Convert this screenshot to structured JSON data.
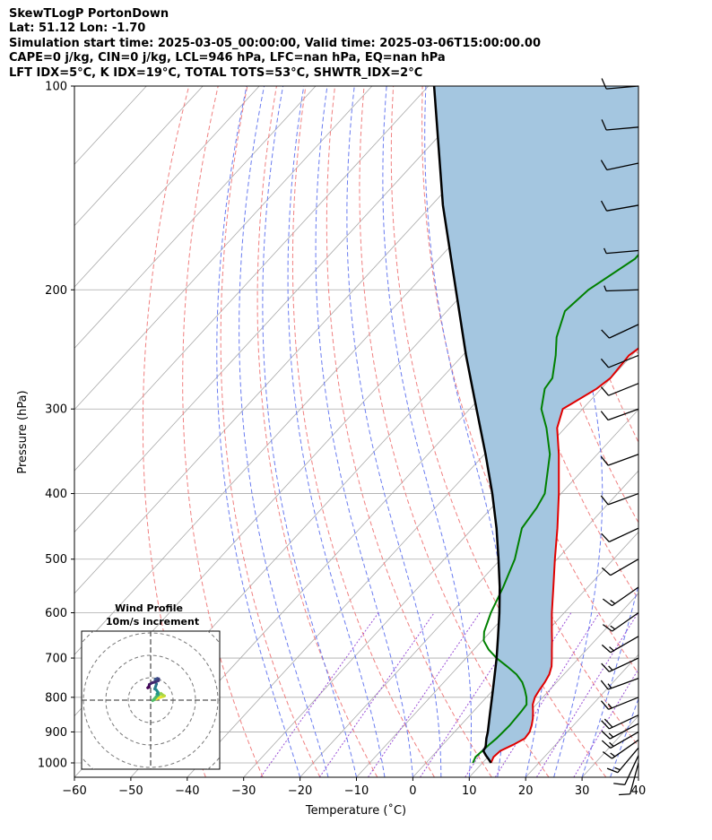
{
  "header": {
    "line1": "SkewTLogP PortonDown",
    "line2": "Lat: 51.12   Lon: -1.70",
    "line3": "Simulation start time: 2025-03-05_00:00:00, Valid time: 2025-03-06T15:00:00.00",
    "line4": "CAPE=0 j/kg, CIN=0 j/kg, LCL=946 hPa, LFC=nan hPa, EQ=nan hPa",
    "line5": "LFT IDX=5°C, K IDX=19°C, TOTAL TOTS=53°C, SHWTR_IDX=2°C"
  },
  "colors": {
    "temperature": "#e00000",
    "dewpoint": "#008000",
    "parcel": "#000000",
    "cape_fill": "#a4c6e0",
    "dry_adiabat": "#f08080",
    "moist_adiabat": "#6a7cf0",
    "mixing_ratio": "#9a4fd6",
    "isotherm": "#aaaaaa"
  },
  "chart_data": {
    "type": "skew-t log-p",
    "xlabel": "Temperature ($^\\circ$C)",
    "xlabel_text": "Temperature (˚C)",
    "ylabel": "Pressure (hPa)",
    "xlim": [
      -60,
      40
    ],
    "ylim": [
      1050,
      100
    ],
    "x_ticks": [
      -60,
      -50,
      -40,
      -30,
      -20,
      -10,
      0,
      10,
      20,
      30,
      40
    ],
    "x_tick_labels": [
      "−60",
      "−50",
      "−40",
      "−30",
      "−20",
      "−10",
      "0",
      "10",
      "20",
      "30",
      "40"
    ],
    "y_ticks": [
      1000,
      900,
      800,
      700,
      600,
      500,
      400,
      300,
      200,
      100
    ],
    "temperature": {
      "p": [
        1000,
        980,
        960,
        940,
        920,
        900,
        880,
        860,
        840,
        820,
        800,
        780,
        760,
        740,
        720,
        700,
        680,
        660,
        640,
        600,
        550,
        500,
        450,
        400,
        350,
        320,
        300,
        280,
        270,
        250,
        235,
        215,
        200,
        180,
        160,
        150,
        140,
        130,
        120,
        110,
        100
      ],
      "t": [
        11.5,
        11.0,
        11.2,
        12.5,
        13.5,
        13.3,
        12.6,
        11.7,
        10.6,
        9.4,
        8.6,
        8.2,
        7.9,
        7.4,
        6.5,
        5.2,
        3.8,
        2.4,
        0.9,
        -2.2,
        -6.1,
        -10.4,
        -15.0,
        -20.4,
        -26.8,
        -31.4,
        -33.5,
        -30.8,
        -30.1,
        -30.5,
        -29.1,
        -26.4,
        -25.6,
        -25.8,
        -26.2,
        -26.4,
        -24.6,
        -23.7,
        -23.1,
        -23.4,
        -22.9
      ]
    },
    "dewpoint": {
      "p": [
        1000,
        980,
        960,
        940,
        920,
        900,
        880,
        860,
        840,
        820,
        800,
        780,
        760,
        740,
        720,
        700,
        680,
        660,
        640,
        600,
        550,
        500,
        450,
        420,
        400,
        350,
        320,
        300,
        280,
        270,
        250,
        235,
        215,
        200,
        180,
        160,
        150,
        140,
        130,
        120,
        110,
        100
      ],
      "t": [
        8.3,
        7.8,
        8.0,
        8.2,
        8.5,
        8.6,
        8.7,
        8.6,
        8.5,
        8.3,
        7.1,
        5.6,
        3.9,
        1.6,
        -1.4,
        -4.6,
        -7.4,
        -9.7,
        -11.1,
        -13.0,
        -15.0,
        -17.5,
        -21.3,
        -22.0,
        -22.9,
        -28.4,
        -33.3,
        -37.3,
        -40.0,
        -40.4,
        -43.5,
        -46.3,
        -49.1,
        -48.4,
        -45.2,
        -45.5,
        -47.0,
        -50.6,
        -49.1,
        -48.7,
        -48.0,
        -47.8
      ]
    },
    "parcel": {
      "p": [
        1000,
        990,
        975,
        960,
        946,
        920,
        900,
        850,
        800,
        750,
        700,
        650,
        600,
        550,
        500,
        450,
        400,
        350,
        300,
        250,
        200,
        150,
        100
      ],
      "t": [
        11.5,
        10.7,
        9.4,
        8.2,
        7.9,
        6.7,
        5.9,
        3.5,
        1.0,
        -1.7,
        -4.6,
        -7.9,
        -11.5,
        -15.6,
        -20.4,
        -25.8,
        -32.2,
        -39.8,
        -48.8,
        -59.4,
        -71.9,
        -88.0,
        -109.0
      ]
    },
    "wind_barbs": [
      {
        "p": 1000,
        "speed_kt": 12,
        "dir_deg": 195
      },
      {
        "p": 975,
        "speed_kt": 14,
        "dir_deg": 205
      },
      {
        "p": 950,
        "speed_kt": 16,
        "dir_deg": 220
      },
      {
        "p": 925,
        "speed_kt": 17,
        "dir_deg": 235
      },
      {
        "p": 900,
        "speed_kt": 18,
        "dir_deg": 240
      },
      {
        "p": 875,
        "speed_kt": 19,
        "dir_deg": 242
      },
      {
        "p": 850,
        "speed_kt": 20,
        "dir_deg": 245
      },
      {
        "p": 800,
        "speed_kt": 19,
        "dir_deg": 248
      },
      {
        "p": 750,
        "speed_kt": 18,
        "dir_deg": 250
      },
      {
        "p": 700,
        "speed_kt": 17,
        "dir_deg": 245
      },
      {
        "p": 650,
        "speed_kt": 16,
        "dir_deg": 240
      },
      {
        "p": 600,
        "speed_kt": 17,
        "dir_deg": 235
      },
      {
        "p": 550,
        "speed_kt": 16,
        "dir_deg": 235
      },
      {
        "p": 500,
        "speed_kt": 14,
        "dir_deg": 240
      },
      {
        "p": 450,
        "speed_kt": 12,
        "dir_deg": 245
      },
      {
        "p": 400,
        "speed_kt": 11,
        "dir_deg": 250
      },
      {
        "p": 350,
        "speed_kt": 12,
        "dir_deg": 250
      },
      {
        "p": 300,
        "speed_kt": 12,
        "dir_deg": 250
      },
      {
        "p": 275,
        "speed_kt": 11,
        "dir_deg": 248
      },
      {
        "p": 250,
        "speed_kt": 12,
        "dir_deg": 248
      },
      {
        "p": 225,
        "speed_kt": 11,
        "dir_deg": 245
      },
      {
        "p": 200,
        "speed_kt": 9,
        "dir_deg": 268
      },
      {
        "p": 175,
        "speed_kt": 9,
        "dir_deg": 265
      },
      {
        "p": 150,
        "speed_kt": 12,
        "dir_deg": 260
      },
      {
        "p": 130,
        "speed_kt": 12,
        "dir_deg": 258
      },
      {
        "p": 115,
        "speed_kt": 11,
        "dir_deg": 265
      },
      {
        "p": 100,
        "speed_kt": 10,
        "dir_deg": 265
      }
    ],
    "hodograph": {
      "title": "Wind Profile",
      "subtitle": "10m/s increment",
      "ring_increment_ms": 10,
      "points": [
        {
          "u": 2.5,
          "v": 0.5
        },
        {
          "u": 4.0,
          "v": 1.2
        },
        {
          "u": 5.5,
          "v": 1.6
        },
        {
          "u": 6.2,
          "v": 1.9
        },
        {
          "u": 5.2,
          "v": 2.5
        },
        {
          "u": 4.6,
          "v": 3.0
        },
        {
          "u": 3.5,
          "v": 2.2
        },
        {
          "u": 2.6,
          "v": 1.5
        },
        {
          "u": 1.6,
          "v": 0.2
        },
        {
          "u": 0.9,
          "v": -0.2
        },
        {
          "u": 2.6,
          "v": 1.7
        },
        {
          "u": 3.4,
          "v": 2.4
        },
        {
          "u": 2.8,
          "v": 2.7
        },
        {
          "u": 3.4,
          "v": 2.6
        },
        {
          "u": 2.9,
          "v": 2.8
        },
        {
          "u": 3.3,
          "v": 3.5
        },
        {
          "u": 2.5,
          "v": 4.6
        },
        {
          "u": 1.8,
          "v": 5.0
        },
        {
          "u": 2.2,
          "v": 6.0
        },
        {
          "u": 2.6,
          "v": 7.2
        },
        {
          "u": 2.3,
          "v": 7.9
        },
        {
          "u": 2.0,
          "v": 9.1
        },
        {
          "u": 2.2,
          "v": 9.4
        },
        {
          "u": 3.0,
          "v": 9.7
        },
        {
          "u": 3.6,
          "v": 9.5
        },
        {
          "u": 3.5,
          "v": 8.7
        },
        {
          "u": 2.0,
          "v": 8.1
        },
        {
          "u": 0.8,
          "v": 7.8
        },
        {
          "u": -0.6,
          "v": 7.0
        },
        {
          "u": -0.7,
          "v": 6.2
        },
        {
          "u": -1.3,
          "v": 5.5
        },
        {
          "u": -0.7,
          "v": 5.8
        }
      ]
    }
  }
}
